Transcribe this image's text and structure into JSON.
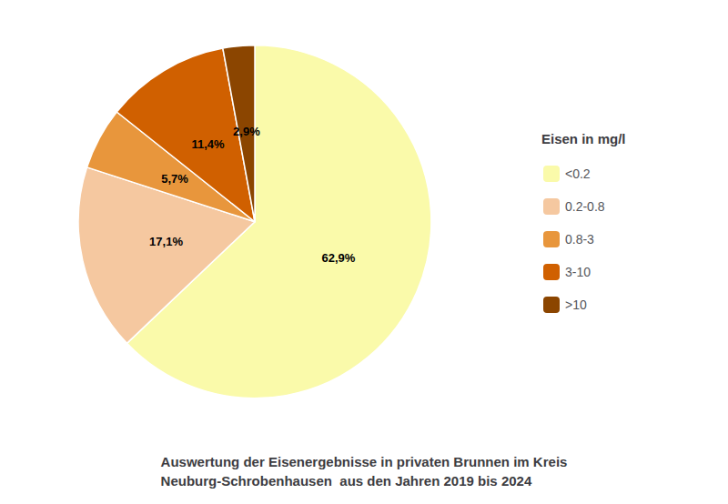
{
  "chart_data": {
    "type": "pie",
    "title": "Auswertung der Eisenergebnisse in privaten Brunnen im Kreis\nNeuburg-Schrobenhausen  aus den Jahren 2019 bis 2024",
    "categories": [
      "<0.2",
      "0.2-0.8",
      "0.8-3",
      "3-10",
      ">10"
    ],
    "values": [
      62.9,
      17.1,
      5.7,
      11.4,
      2.9
    ],
    "value_labels": [
      "62,9%",
      "17,1%",
      "5,7%",
      "11,4%",
      "2,9%"
    ],
    "colors": [
      "#FAFAAA",
      "#F5C8A0",
      "#E8963C",
      "#D06000",
      "#8B4500"
    ],
    "legend_title": "Eisen in mg/l",
    "legend": "right",
    "data_labels": true
  }
}
